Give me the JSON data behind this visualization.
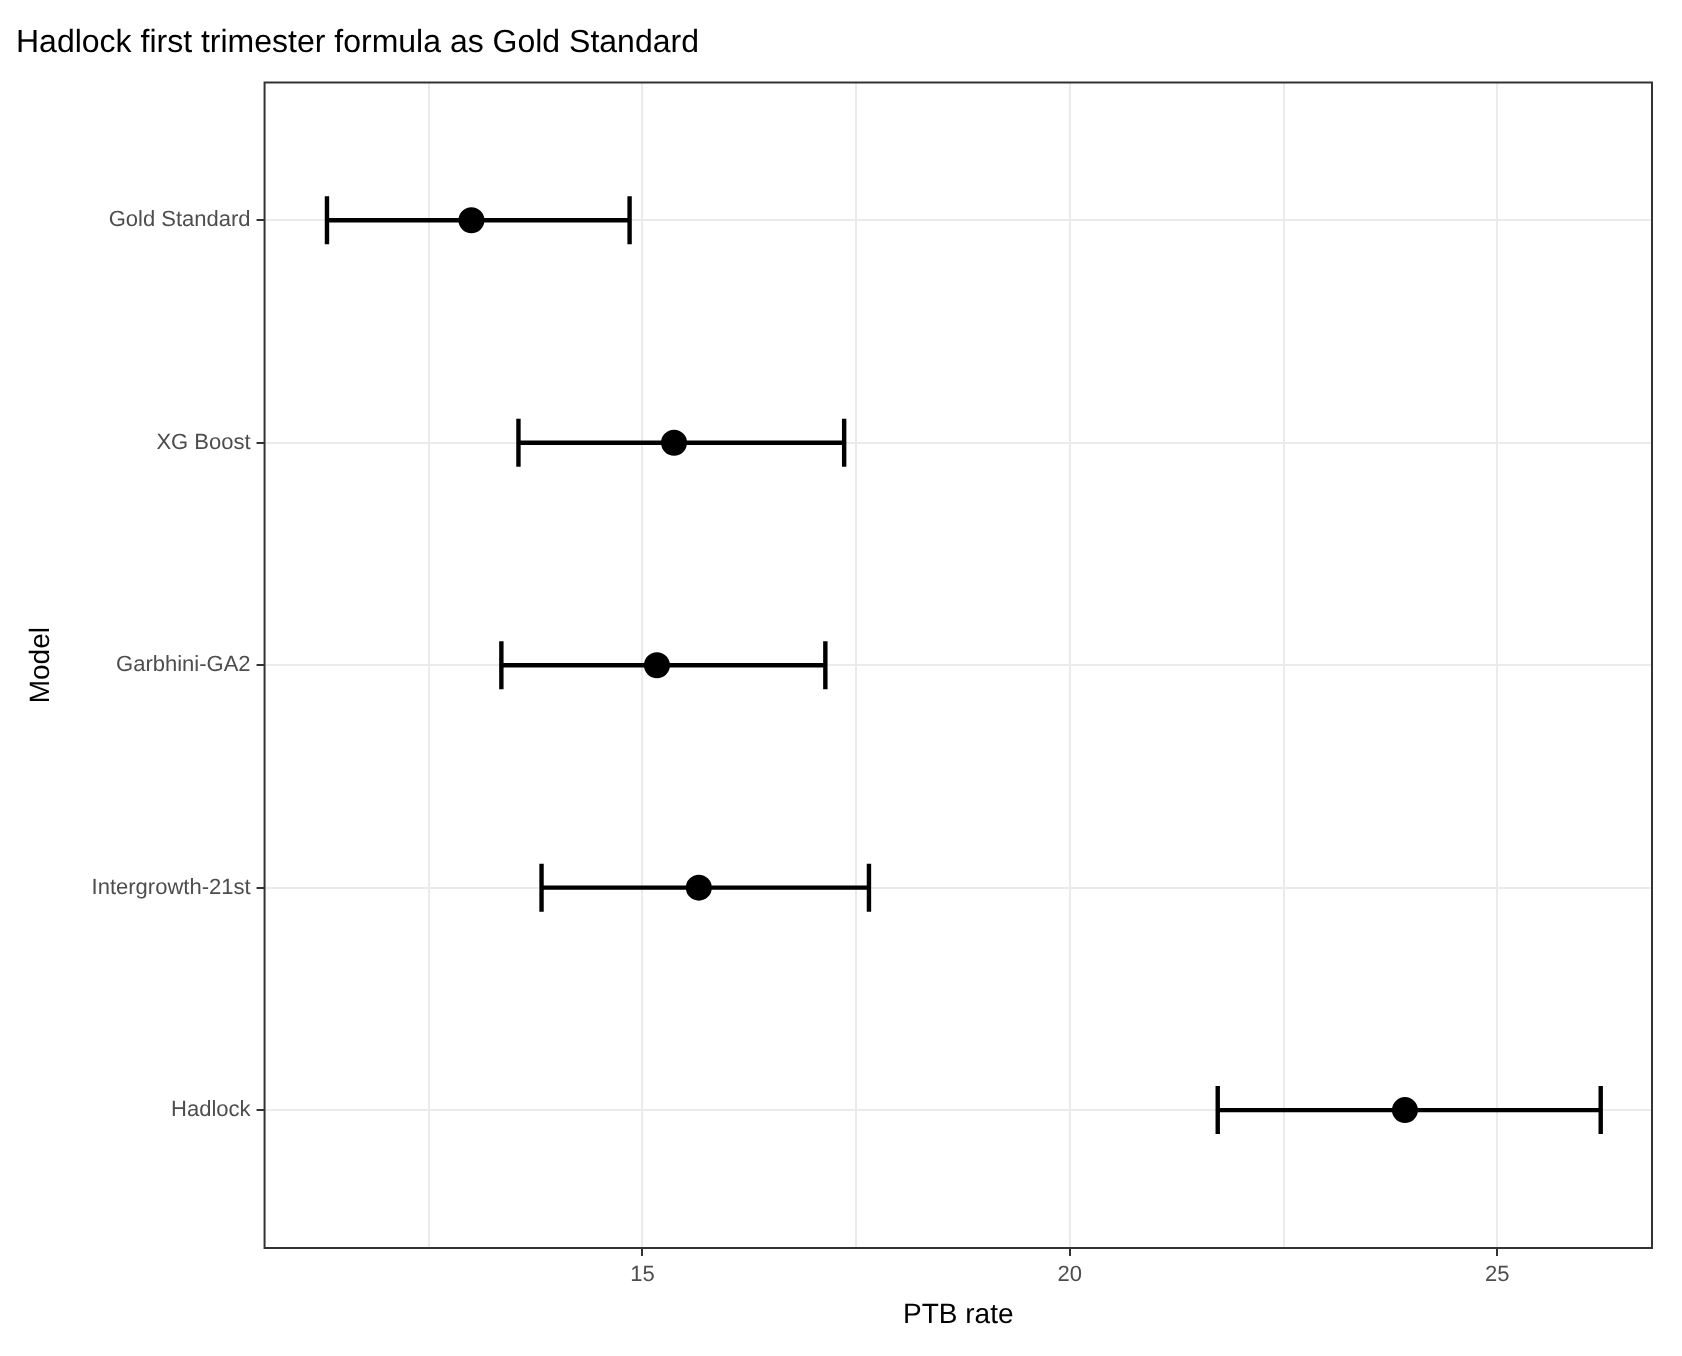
{
  "chart_data": {
    "type": "scatter",
    "orientation": "horizontal",
    "title": "Hadlock first trimester formula as Gold Standard",
    "xlabel": "PTB rate",
    "ylabel": "Model",
    "categories": [
      "Gold Standard",
      "XG Boost",
      "Garbhini-GA2",
      "Intergrowth-21st",
      "Hadlock"
    ],
    "values": [
      13.0,
      15.37,
      15.17,
      15.66,
      23.92
    ],
    "errors": [
      [
        11.31,
        14.85
      ],
      [
        13.55,
        17.36
      ],
      [
        13.35,
        17.14
      ],
      [
        13.82,
        17.65
      ],
      [
        21.73,
        26.21
      ]
    ],
    "color": "#000000",
    "xlim": [
      10.58,
      26.81
    ],
    "xticks": [
      {
        "value": 12.5,
        "label": null
      },
      15,
      {
        "value": 17.5,
        "label": null
      },
      20,
      {
        "value": 22.5,
        "label": null
      },
      25
    ],
    "grid": true,
    "marker": "circle",
    "legend": false
  }
}
